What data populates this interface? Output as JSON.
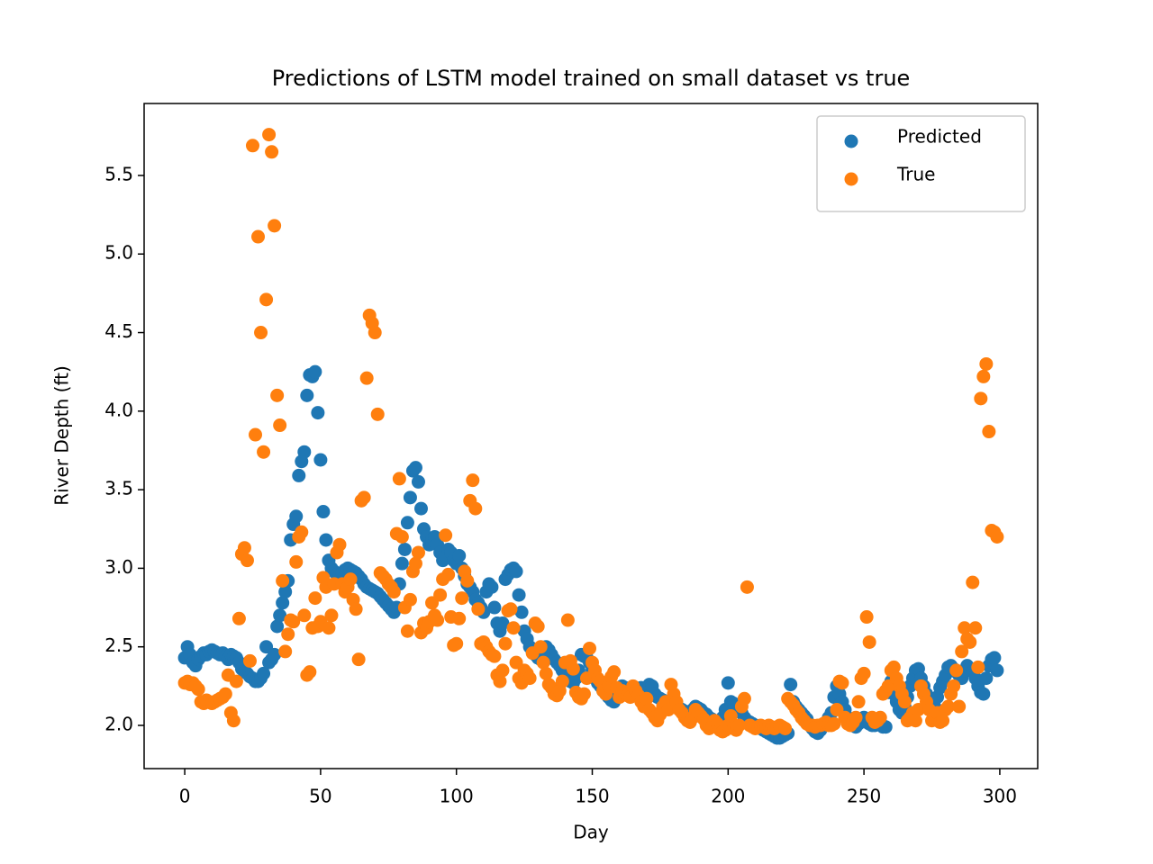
{
  "chart_data": {
    "type": "scatter",
    "title": "Predictions of LSTM model trained on small dataset vs true",
    "xlabel": "Day",
    "ylabel": "River Depth (ft)",
    "xlim": [
      -14.95,
      313.95
    ],
    "ylim": [
      1.725,
      5.958
    ],
    "xticks": [
      0,
      50,
      100,
      150,
      200,
      250,
      300
    ],
    "yticks": [
      {
        "value": 2,
        "label": "2.0"
      },
      2.5,
      {
        "value": 3,
        "label": "3.0"
      },
      3.5,
      {
        "value": 4,
        "label": "4.0"
      },
      4.5,
      {
        "value": 5,
        "label": "5.0"
      },
      5.5
    ],
    "grid": false,
    "legend": "upper right",
    "x": [
      0,
      1,
      2,
      3,
      4,
      5,
      6,
      7,
      8,
      9,
      10,
      11,
      12,
      13,
      14,
      15,
      16,
      17,
      18,
      19,
      20,
      21,
      22,
      23,
      24,
      25,
      26,
      27,
      28,
      29,
      30,
      31,
      32,
      33,
      34,
      35,
      36,
      37,
      38,
      39,
      40,
      41,
      42,
      43,
      44,
      45,
      46,
      47,
      48,
      49,
      50,
      51,
      52,
      53,
      54,
      55,
      56,
      57,
      58,
      59,
      60,
      61,
      62,
      63,
      64,
      65,
      66,
      67,
      68,
      69,
      70,
      71,
      72,
      73,
      74,
      75,
      76,
      77,
      78,
      79,
      80,
      81,
      82,
      83,
      84,
      85,
      86,
      87,
      88,
      89,
      90,
      91,
      92,
      93,
      94,
      95,
      96,
      97,
      98,
      99,
      100,
      101,
      102,
      103,
      104,
      105,
      106,
      107,
      108,
      109,
      110,
      111,
      112,
      113,
      114,
      115,
      116,
      117,
      118,
      119,
      120,
      121,
      122,
      123,
      124,
      125,
      126,
      127,
      128,
      129,
      130,
      131,
      132,
      133,
      134,
      135,
      136,
      137,
      138,
      139,
      140,
      141,
      142,
      143,
      144,
      145,
      146,
      147,
      148,
      149,
      150,
      151,
      152,
      153,
      154,
      155,
      156,
      157,
      158,
      159,
      160,
      161,
      162,
      163,
      164,
      165,
      166,
      167,
      168,
      169,
      170,
      171,
      172,
      173,
      174,
      175,
      176,
      177,
      178,
      179,
      180,
      181,
      182,
      183,
      184,
      185,
      186,
      187,
      188,
      189,
      190,
      191,
      192,
      193,
      194,
      195,
      196,
      197,
      198,
      199,
      200,
      201,
      202,
      203,
      204,
      205,
      206,
      207,
      208,
      209,
      210,
      211,
      212,
      213,
      214,
      215,
      216,
      217,
      218,
      219,
      220,
      221,
      222,
      223,
      224,
      225,
      226,
      227,
      228,
      229,
      230,
      231,
      232,
      233,
      234,
      235,
      236,
      237,
      238,
      239,
      240,
      241,
      242,
      243,
      244,
      245,
      246,
      247,
      248,
      249,
      250,
      251,
      252,
      253,
      254,
      255,
      256,
      257,
      258,
      259,
      260,
      261,
      262,
      263,
      264,
      265,
      266,
      267,
      268,
      269,
      270,
      271,
      272,
      273,
      274,
      275,
      276,
      277,
      278,
      279,
      280,
      281,
      282,
      283,
      284,
      285,
      286,
      287,
      288,
      289,
      290,
      291,
      292,
      293,
      294,
      295,
      296,
      297,
      298,
      299
    ],
    "series": [
      {
        "name": "Predicted",
        "color": "#1f77b4",
        "values": [
          2.43,
          2.5,
          2.45,
          2.4,
          2.38,
          2.42,
          2.44,
          2.46,
          2.45,
          2.47,
          2.48,
          2.47,
          2.46,
          2.45,
          2.46,
          2.44,
          2.42,
          2.45,
          2.44,
          2.43,
          2.4,
          2.36,
          2.34,
          2.33,
          2.31,
          2.3,
          2.28,
          2.28,
          2.3,
          2.33,
          2.5,
          2.4,
          2.42,
          2.45,
          2.63,
          2.7,
          2.78,
          2.85,
          2.92,
          3.18,
          3.28,
          3.33,
          3.59,
          3.68,
          3.74,
          4.1,
          4.23,
          4.22,
          4.25,
          3.99,
          3.69,
          3.36,
          3.18,
          3.05,
          3.0,
          2.98,
          2.96,
          2.95,
          2.97,
          2.99,
          3.0,
          2.99,
          2.98,
          2.97,
          2.95,
          2.93,
          2.9,
          2.88,
          2.87,
          2.86,
          2.85,
          2.84,
          2.82,
          2.8,
          2.78,
          2.76,
          2.74,
          2.72,
          2.75,
          2.9,
          3.03,
          3.12,
          3.29,
          3.45,
          3.62,
          3.64,
          3.55,
          3.38,
          3.25,
          3.2,
          3.15,
          3.18,
          3.2,
          3.15,
          3.1,
          3.05,
          3.08,
          3.12,
          3.1,
          3.05,
          3.03,
          3.08,
          3.0,
          2.95,
          2.9,
          2.88,
          2.85,
          2.8,
          2.78,
          2.75,
          2.72,
          2.85,
          2.9,
          2.88,
          2.75,
          2.65,
          2.6,
          2.65,
          2.93,
          2.96,
          2.99,
          3.0,
          2.98,
          2.83,
          2.72,
          2.6,
          2.55,
          2.5,
          2.47,
          2.45,
          2.43,
          2.42,
          2.46,
          2.5,
          2.48,
          2.45,
          2.42,
          2.4,
          2.38,
          2.35,
          2.33,
          2.3,
          2.28,
          2.27,
          2.3,
          2.35,
          2.45,
          2.44,
          2.43,
          2.4,
          2.35,
          2.3,
          2.27,
          2.25,
          2.22,
          2.2,
          2.18,
          2.16,
          2.15,
          2.2,
          2.23,
          2.25,
          2.24,
          2.23,
          2.22,
          2.21,
          2.2,
          2.22,
          2.24,
          2.23,
          2.22,
          2.26,
          2.25,
          2.2,
          2.18,
          2.17,
          2.16,
          2.15,
          2.14,
          2.13,
          2.12,
          2.12,
          2.11,
          2.1,
          2.09,
          2.08,
          2.08,
          2.1,
          2.12,
          2.11,
          2.1,
          2.08,
          2.07,
          2.05,
          2.04,
          2.03,
          2.02,
          2.03,
          2.05,
          2.1,
          2.27,
          2.15,
          2.14,
          2.12,
          2.1,
          2.08,
          2.05,
          2.03,
          2.02,
          2.01,
          2.0,
          1.99,
          1.98,
          1.97,
          1.96,
          1.95,
          1.94,
          1.93,
          1.92,
          1.92,
          1.93,
          1.94,
          1.95,
          2.26,
          2.15,
          2.12,
          2.1,
          2.08,
          2.06,
          2.04,
          2.0,
          1.98,
          1.96,
          1.95,
          1.97,
          2.0,
          2.02,
          2.05,
          2.08,
          2.18,
          2.25,
          2.2,
          2.15,
          2.1,
          2.05,
          2.02,
          2.0,
          1.99,
          2.01,
          2.03,
          2.05,
          2.02,
          2.01,
          2.0,
          2.0,
          2.01,
          2.02,
          1.99,
          1.99,
          2.21,
          2.28,
          2.2,
          2.15,
          2.1,
          2.08,
          2.12,
          2.18,
          2.25,
          2.3,
          2.35,
          2.36,
          2.3,
          2.25,
          2.2,
          2.15,
          2.1,
          2.12,
          2.18,
          2.24,
          2.28,
          2.32,
          2.37,
          2.38,
          2.36,
          2.34,
          2.32,
          2.3,
          2.35,
          2.38,
          2.36,
          2.34,
          2.3,
          2.25,
          2.21,
          2.2,
          2.3,
          2.38,
          2.42,
          2.43,
          2.35
        ]
      },
      {
        "name": "True",
        "color": "#ff7f0e",
        "values": [
          2.27,
          2.28,
          2.26,
          2.27,
          2.25,
          2.23,
          2.15,
          2.14,
          2.16,
          2.15,
          2.14,
          2.15,
          2.16,
          2.17,
          2.18,
          2.2,
          2.32,
          2.08,
          2.03,
          2.28,
          2.68,
          3.09,
          3.13,
          3.05,
          2.41,
          5.69,
          3.85,
          5.11,
          4.5,
          3.74,
          4.71,
          5.76,
          5.65,
          5.18,
          4.1,
          3.91,
          2.92,
          2.47,
          2.58,
          2.67,
          2.66,
          3.04,
          3.2,
          3.23,
          2.7,
          2.32,
          2.34,
          2.62,
          2.81,
          2.63,
          2.66,
          2.94,
          2.88,
          2.62,
          2.7,
          2.9,
          3.1,
          3.15,
          2.9,
          2.85,
          2.88,
          2.93,
          2.8,
          2.74,
          2.42,
          3.43,
          3.45,
          4.21,
          4.61,
          4.56,
          4.5,
          3.98,
          2.97,
          2.95,
          2.93,
          2.9,
          2.88,
          2.85,
          3.22,
          3.57,
          3.2,
          2.75,
          2.6,
          2.8,
          2.98,
          3.03,
          3.1,
          2.59,
          2.65,
          2.62,
          2.66,
          2.78,
          2.7,
          2.67,
          2.83,
          2.93,
          3.21,
          2.96,
          2.69,
          2.51,
          2.52,
          2.68,
          2.81,
          2.98,
          2.92,
          3.43,
          3.56,
          3.38,
          2.74,
          2.52,
          2.53,
          2.5,
          2.47,
          2.45,
          2.44,
          2.32,
          2.28,
          2.35,
          2.52,
          2.73,
          2.74,
          2.62,
          2.4,
          2.3,
          2.27,
          2.35,
          2.33,
          2.3,
          2.46,
          2.65,
          2.63,
          2.5,
          2.4,
          2.33,
          2.26,
          2.24,
          2.2,
          2.19,
          2.22,
          2.28,
          2.4,
          2.67,
          2.41,
          2.36,
          2.21,
          2.18,
          2.17,
          2.2,
          2.3,
          2.49,
          2.4,
          2.35,
          2.3,
          2.28,
          2.22,
          2.2,
          2.25,
          2.31,
          2.34,
          2.24,
          2.18,
          2.22,
          2.2,
          2.19,
          2.18,
          2.25,
          2.22,
          2.19,
          2.15,
          2.12,
          2.17,
          2.1,
          2.08,
          2.05,
          2.03,
          2.07,
          2.12,
          2.15,
          2.1,
          2.26,
          2.2,
          2.15,
          2.1,
          2.08,
          2.05,
          2.03,
          2.02,
          2.05,
          2.1,
          2.08,
          2.06,
          2.04,
          2.0,
          1.98,
          1.99,
          2.03,
          2.01,
          1.97,
          1.96,
          1.97,
          2.0,
          2.06,
          1.98,
          1.97,
          2.0,
          2.12,
          2.17,
          2.88,
          2.0,
          1.99,
          1.98,
          1.99,
          2.0,
          1.99,
          1.98,
          2.0,
          1.99,
          1.98,
          1.99,
          2.0,
          1.99,
          1.98,
          2.17,
          2.15,
          2.13,
          2.1,
          2.08,
          2.05,
          2.03,
          2.01,
          2.0,
          2.0,
          1.99,
          2.0,
          2.0,
          2.01,
          2.02,
          2.0,
          2.0,
          2.01,
          2.1,
          2.28,
          2.27,
          2.05,
          2.01,
          2.0,
          2.02,
          2.05,
          2.15,
          2.3,
          2.33,
          2.69,
          2.53,
          2.05,
          2.02,
          2.03,
          2.05,
          2.2,
          2.22,
          2.25,
          2.35,
          2.37,
          2.3,
          2.25,
          2.2,
          2.15,
          2.03,
          2.05,
          2.08,
          2.03,
          2.1,
          2.25,
          2.2,
          2.15,
          2.1,
          2.03,
          2.05,
          2.08,
          2.02,
          2.03,
          2.1,
          2.12,
          2.2,
          2.25,
          2.35,
          2.12,
          2.47,
          2.62,
          2.55,
          2.53,
          2.91,
          2.62,
          2.37,
          4.08,
          4.22,
          4.3,
          3.87,
          3.24,
          3.23,
          3.2
        ]
      }
    ]
  }
}
